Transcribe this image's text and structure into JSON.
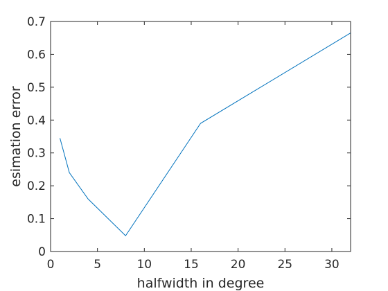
{
  "chart_data": {
    "type": "line",
    "xlabel": "halfwidth in degree",
    "ylabel": "esimation error",
    "xlim": [
      0,
      32
    ],
    "ylim": [
      0,
      0.7
    ],
    "xticks": [
      0,
      5,
      10,
      15,
      20,
      25,
      30
    ],
    "yticks": [
      0,
      0.1,
      0.2,
      0.3,
      0.4,
      0.5,
      0.6,
      0.7
    ],
    "xtick_labels": [
      "0",
      "5",
      "10",
      "15",
      "20",
      "25",
      "30"
    ],
    "ytick_labels": [
      "0",
      "0.1",
      "0.2",
      "0.3",
      "0.4",
      "0.5",
      "0.6",
      "0.7"
    ],
    "grid": false,
    "box": true,
    "series": [
      {
        "color": "#0072bd",
        "x": [
          1,
          2,
          4,
          8,
          16,
          32
        ],
        "y": [
          0.345,
          0.24,
          0.16,
          0.048,
          0.39,
          0.665
        ]
      }
    ]
  }
}
